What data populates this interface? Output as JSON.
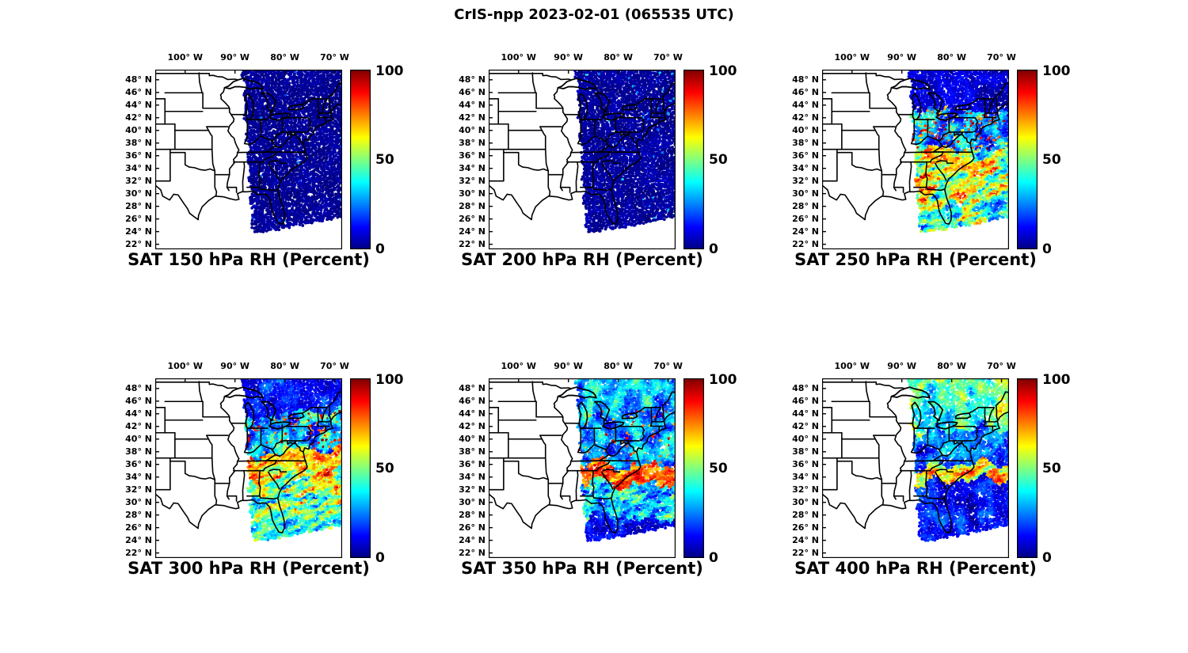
{
  "figure": {
    "title": "CrIS-npp 2023-02-01 (065535 UTC)"
  },
  "axes": {
    "lon_ticks": [
      "100° W",
      "90° W",
      "80° W",
      "70° W"
    ],
    "lat_ticks": [
      "48° N",
      "46° N",
      "44° N",
      "42° N",
      "40° N",
      "38° N",
      "36° N",
      "34° N",
      "32° N",
      "30° N",
      "28° N",
      "26° N",
      "24° N",
      "22° N"
    ]
  },
  "colorbar": {
    "tick_labels": [
      "100",
      "50",
      "0"
    ],
    "min": 0,
    "max": 100,
    "colormap": "jet"
  },
  "panels": [
    {
      "title": "SAT 150 hPa RH (Percent)",
      "level_hPa": 150
    },
    {
      "title": "SAT 200 hPa RH (Percent)",
      "level_hPa": 200
    },
    {
      "title": "SAT 250 hPa RH (Percent)",
      "level_hPa": 250
    },
    {
      "title": "SAT 300 hPa RH (Percent)",
      "level_hPa": 300
    },
    {
      "title": "SAT 350 hPa RH (Percent)",
      "level_hPa": 350
    },
    {
      "title": "SAT 400 hPa RH (Percent)",
      "level_hPa": 400
    }
  ],
  "chart_data": {
    "type": "heatmap",
    "title": "CrIS-npp 2023-02-01 (065535 UTC)",
    "instrument": "CrIS-npp",
    "date": "2023-02-01",
    "time_utc": "065535",
    "variable": "SAT RH (Percent)",
    "units": "percent",
    "value_range": [
      0,
      100
    ],
    "colormap": "jet",
    "lon_ticks_deg_w": [
      100,
      90,
      80,
      70
    ],
    "lat_ticks_deg_n": [
      48,
      46,
      44,
      42,
      40,
      38,
      36,
      34,
      32,
      30,
      28,
      26,
      24,
      22
    ],
    "layout": "2 rows x 3 columns, one satellite swath over the eastern United States per panel, jet colorbar 0-100 on right of each map",
    "panels": [
      {
        "level_hPa": 150,
        "title": "SAT 150 hPa RH (Percent)",
        "summary": "Swath covering the eastern US is nearly uniform dark blue; RH about 0-5% everywhere with only rare brighter specks.",
        "approx_field": [
          {
            "lat_min": 21,
            "lat_max": 50,
            "rh_base": 2.5,
            "rh_amp": 2.5,
            "hot_frac": 0.004,
            "hot_min": 10,
            "hot_max": 28
          }
        ]
      },
      {
        "level_hPa": 200,
        "title": "SAT 200 hPa RH (Percent)",
        "summary": "Almost entirely dark blue (RH 0-8%); isolated specks up to ~35% in the far south of the swath.",
        "approx_field": [
          {
            "lat_min": 21,
            "lat_max": 50,
            "rh_base": 3,
            "rh_amp": 3.5,
            "hot_frac": 0.012,
            "hot_min": 10,
            "hot_max": 38
          }
        ]
      },
      {
        "level_hPa": 250,
        "title": "SAT 250 hPa RH (Percent)",
        "summary": "Dry (<16%) north of ~43N; scattered moist patches 60-100% between 37-43N; strong streaky mix of orange/red (60-100%) and cyan/green (30-60%) from ~37N south across the Southeast and offshore Atlantic.",
        "approx_field": [
          {
            "lat_min": 43,
            "lat_max": 50,
            "rh_base": 8,
            "rh_amp": 8
          },
          {
            "lat_min": 37,
            "lat_max": 43,
            "rh_base": 25,
            "rh_amp": 30,
            "hot_frac": 0.15,
            "hot_min": 62,
            "hot_max": 100
          },
          {
            "lat_min": 29,
            "lat_max": 37,
            "rh_base": 55,
            "rh_amp": 47,
            "streak": true
          },
          {
            "lat_min": 21,
            "lat_max": 29,
            "rh_base": 46,
            "rh_amp": 44,
            "streak": true
          }
        ]
      },
      {
        "level_hPa": 300,
        "title": "SAT 300 hPa RH (Percent)",
        "summary": "Moist band 70-100% near 34.5-38N across TN/Carolinas into the Atlantic; mixed 30-70% with red streaks 38-44N; dry blue north of 44N; streaky yellow-green arc 40-70% south of 28.5N fading eastward.",
        "approx_field": [
          {
            "lat_min": 44,
            "lat_max": 50,
            "rh_base": 14,
            "rh_amp": 15
          },
          {
            "lat_min": 38,
            "lat_max": 44,
            "rh_base": 33,
            "rh_amp": 36,
            "hot_frac": 0.1,
            "hot_min": 70,
            "hot_max": 100
          },
          {
            "lat_min": 34.5,
            "lat_max": 38,
            "rh_base": 68,
            "rh_amp": 32,
            "streak": true
          },
          {
            "lat_min": 28.5,
            "lat_max": 34.5,
            "rh_base": 52,
            "rh_amp": 46,
            "streak": true
          },
          {
            "lat_min": 21,
            "lat_max": 28.5,
            "rh_base": 42,
            "rh_amp": 32,
            "streak": true
          }
        ]
      },
      {
        "level_hPa": 350,
        "title": "SAT 350 hPa RH (Percent)",
        "summary": "Saturated red band 80-100% near 33-36N across AL/GA/SC; cyan/blue patches 20-55% between 36-45N with green/yellow specks near the top; streaky 0-70% 27.5-33N; mostly dark blue south of 27.5N.",
        "approx_field": [
          {
            "lat_min": 45,
            "lat_max": 50,
            "rh_base": 30,
            "rh_amp": 30
          },
          {
            "lat_min": 36,
            "lat_max": 45,
            "rh_base": 27,
            "rh_amp": 28,
            "hot_frac": 0.05,
            "hot_min": 65,
            "hot_max": 95
          },
          {
            "lat_min": 33,
            "lat_max": 36,
            "rh_base": 76,
            "rh_amp": 24,
            "streak": true
          },
          {
            "lat_min": 27.5,
            "lat_max": 33,
            "rh_base": 34,
            "rh_amp": 34,
            "streak": true
          },
          {
            "lat_min": 21,
            "lat_max": 27.5,
            "rh_base": 12,
            "rh_amp": 13
          }
        ]
      },
      {
        "level_hPa": 400,
        "title": "SAT 400 hPa RH (Percent)",
        "summary": "Cyan/green 40-70% north of ~41.5N with gaps; blue 10-45% mid-latitudes; orange/red band 60-100% near 33.5-36N; dark blue below ~30% south of 33.5N.",
        "approx_field": [
          {
            "lat_min": 41.5,
            "lat_max": 50,
            "rh_base": 48,
            "rh_amp": 28,
            "gap_frac": 0.12
          },
          {
            "lat_min": 36,
            "lat_max": 41.5,
            "rh_base": 24,
            "rh_amp": 25
          },
          {
            "lat_min": 33.5,
            "lat_max": 36,
            "rh_base": 65,
            "rh_amp": 34,
            "streak": true
          },
          {
            "lat_min": 27.5,
            "lat_max": 33.5,
            "rh_base": 12,
            "rh_amp": 15
          },
          {
            "lat_min": 21,
            "lat_max": 27.5,
            "rh_base": 14,
            "rh_amp": 16
          }
        ]
      }
    ]
  }
}
